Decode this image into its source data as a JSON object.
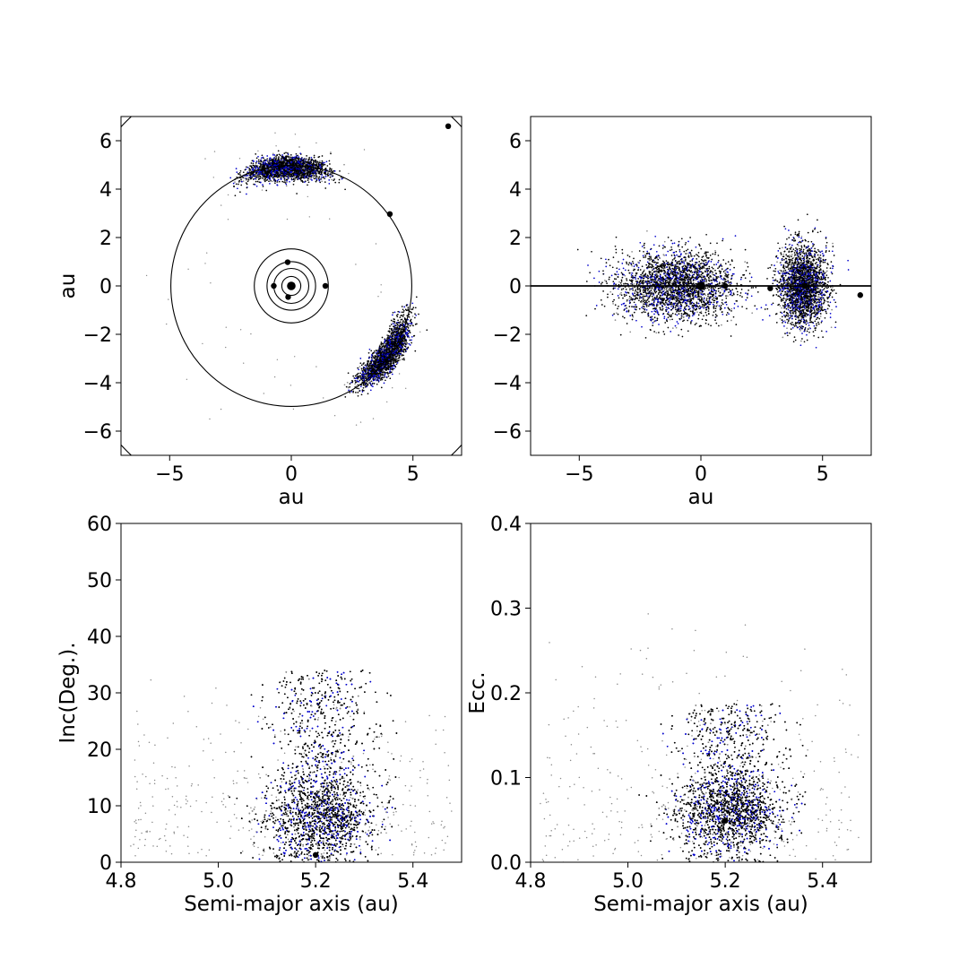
{
  "chart_data": [
    {
      "id": "xy_projection",
      "type": "scatter",
      "xlabel": "au",
      "ylabel": "au",
      "xlim": [
        -7,
        7
      ],
      "ylim": [
        -7,
        7
      ],
      "x_ticks": [
        -5,
        0,
        5
      ],
      "y_ticks": [
        -6,
        -4,
        -2,
        0,
        2,
        4,
        6
      ],
      "x_tick_labels": [
        "−5",
        "0",
        "5"
      ],
      "y_tick_labels": [
        "−6",
        "−4",
        "−2",
        "0",
        "2",
        "4",
        "6"
      ],
      "grid": false,
      "circles_radius": [
        0.39,
        0.72,
        1.0,
        1.52,
        4.95,
        9.58
      ],
      "bodies": [
        {
          "name": "sun",
          "x": 0,
          "y": 0,
          "size": "large"
        },
        {
          "name": "mercury",
          "x": -0.13,
          "y": -0.46,
          "size": "small"
        },
        {
          "name": "venus",
          "x": -0.72,
          "y": 0.0,
          "size": "small"
        },
        {
          "name": "earth",
          "x": -0.15,
          "y": 0.98,
          "size": "small"
        },
        {
          "name": "mars",
          "x": 1.4,
          "y": 0.0,
          "size": "small"
        },
        {
          "name": "jupiter",
          "x": 4.05,
          "y": 2.97,
          "size": "small"
        },
        {
          "name": "saturn",
          "x": 6.45,
          "y": 6.6,
          "size": "small"
        }
      ],
      "clusters": [
        {
          "name": "L4 swarm",
          "center_angle_deg": 92,
          "angle_spread_deg": 17,
          "radius": 4.9,
          "radial_spread": 0.25,
          "count": 2600
        },
        {
          "name": "L5 swarm",
          "center_angle_deg": -36,
          "angle_spread_deg": 17,
          "radius": 4.9,
          "radial_spread": 0.25,
          "count": 2400
        }
      ]
    },
    {
      "id": "xz_projection",
      "type": "scatter",
      "xlabel": "au",
      "ylabel": "",
      "xlim": [
        -7,
        7
      ],
      "ylim": [
        -7,
        7
      ],
      "x_ticks": [
        -5,
        0,
        5
      ],
      "y_ticks": [
        -6,
        -4,
        -2,
        0,
        2,
        4,
        6
      ],
      "x_tick_labels": [
        "−5",
        "0",
        "5"
      ],
      "y_tick_labels": [
        "−6",
        "−4",
        "−2",
        "0",
        "2",
        "4",
        "6"
      ],
      "grid": false,
      "reference_line_y": 0,
      "bodies": [
        {
          "name": "sun",
          "x": 0,
          "y": 0,
          "size": "large"
        },
        {
          "name": "earth",
          "x": 1.0,
          "y": 0.0,
          "size": "small"
        },
        {
          "name": "mars",
          "x": 2.85,
          "y": -0.1,
          "size": "small"
        },
        {
          "name": "jupiter",
          "x": 4.3,
          "y": 0.0,
          "size": "small"
        },
        {
          "name": "saturn",
          "x": 6.55,
          "y": -0.38,
          "size": "small"
        }
      ],
      "clusters": [
        {
          "name": "L4 swarm",
          "x_center": -1.0,
          "x_spread": 1.6,
          "y_spread": 0.95,
          "count": 2600
        },
        {
          "name": "L5 swarm",
          "x_center": 4.2,
          "x_spread": 0.65,
          "y_spread": 1.1,
          "count": 2400
        }
      ]
    },
    {
      "id": "a_vs_inc",
      "type": "scatter",
      "xlabel": "Semi-major axis (au)",
      "ylabel": "Inc(Deg.).",
      "xlim": [
        4.8,
        5.5
      ],
      "ylim": [
        0,
        60
      ],
      "x_ticks": [
        4.8,
        5.0,
        5.2,
        5.4
      ],
      "y_ticks": [
        0,
        10,
        20,
        30,
        40,
        50,
        60
      ],
      "x_tick_labels": [
        "4.8",
        "5.0",
        "5.2",
        "5.4"
      ],
      "y_tick_labels": [
        "0",
        "10",
        "20",
        "30",
        "40",
        "50",
        "60"
      ],
      "grid": false,
      "bodies": [
        {
          "name": "jupiter",
          "x": 5.2,
          "y": 1.3,
          "size": "small"
        }
      ],
      "clusters": [
        {
          "name": "main group",
          "x_center": 5.21,
          "x_spread": 0.055,
          "y_min": 0,
          "y_max": 40,
          "y_mode": 8,
          "count": 5000
        },
        {
          "name": "scattered",
          "x_min": 4.82,
          "x_max": 5.48,
          "y_min": 1,
          "y_max": 33,
          "count": 350
        }
      ]
    },
    {
      "id": "a_vs_ecc",
      "type": "scatter",
      "xlabel": "Semi-major axis (au)",
      "ylabel": "Ecc.",
      "xlim": [
        4.8,
        5.5
      ],
      "ylim": [
        0,
        0.4
      ],
      "x_ticks": [
        4.8,
        5.0,
        5.2,
        5.4
      ],
      "y_ticks": [
        0.0,
        0.1,
        0.2,
        0.3,
        0.4
      ],
      "x_tick_labels": [
        "4.8",
        "5.0",
        "5.2",
        "5.4"
      ],
      "y_tick_labels": [
        "0.0",
        "0.1",
        "0.2",
        "0.3",
        "0.4"
      ],
      "grid": false,
      "bodies": [
        {
          "name": "jupiter",
          "x": 5.2,
          "y": 0.049,
          "size": "small"
        }
      ],
      "clusters": [
        {
          "name": "main group",
          "x_center": 5.21,
          "x_spread": 0.055,
          "y_min": 0,
          "y_max": 0.22,
          "y_mode": 0.06,
          "count": 5000
        },
        {
          "name": "scattered",
          "x_min": 4.82,
          "x_max": 5.48,
          "y_min": 0.0,
          "y_max": 0.3,
          "count": 350
        }
      ]
    }
  ],
  "colors": {
    "point_primary": "#000000",
    "point_secondary": "#0000cc",
    "point_faint": "#8a8a8a",
    "axes": "#000000"
  }
}
